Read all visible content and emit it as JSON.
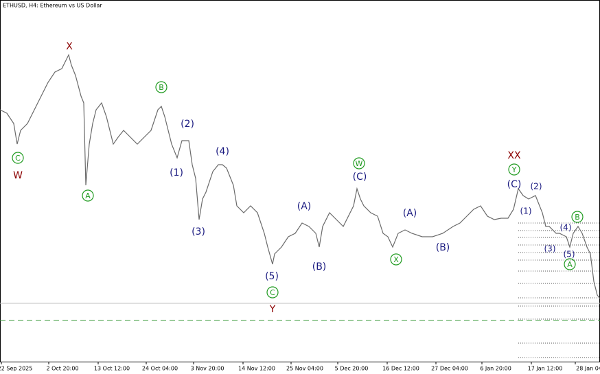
{
  "header": {
    "title": "ETHUSD, H4:  Ethereum vs US Dollar"
  },
  "xaxis": {
    "labels": [
      "22 Sep 2025",
      "2 Oct 20:00",
      "13 Oct 12:00",
      "24 Oct 04:00",
      "3 Nov 20:00",
      "14 Nov 12:00",
      "25 Nov 04:00",
      "5 Dec 20:00",
      "16 Dec 12:00",
      "27 Dec 04:00",
      "6 Jan 20:00",
      "17 Jan 12:00",
      "28 Jan 04"
    ]
  },
  "wave_labels": [
    {
      "label": "X"
    },
    {
      "label": "C"
    },
    {
      "label": "W"
    },
    {
      "label": "A"
    },
    {
      "label": "B"
    },
    {
      "label": "(2)"
    },
    {
      "label": "(1)"
    },
    {
      "label": "(3)"
    },
    {
      "label": "(4)"
    },
    {
      "label": "(5)"
    },
    {
      "label": "C"
    },
    {
      "label": "Y"
    },
    {
      "label": "(A)"
    },
    {
      "label": "(B)"
    },
    {
      "label": "W"
    },
    {
      "label": "(C)"
    },
    {
      "label": "X"
    },
    {
      "label": "(A)"
    },
    {
      "label": "(B)"
    },
    {
      "label": "XX"
    },
    {
      "label": "Y"
    },
    {
      "label": "(C)"
    },
    {
      "label": "(2)"
    },
    {
      "label": "(1)"
    },
    {
      "label": "(4)"
    },
    {
      "label": "B"
    },
    {
      "label": "(3)"
    },
    {
      "label": "(5)"
    },
    {
      "label": "A"
    }
  ]
}
